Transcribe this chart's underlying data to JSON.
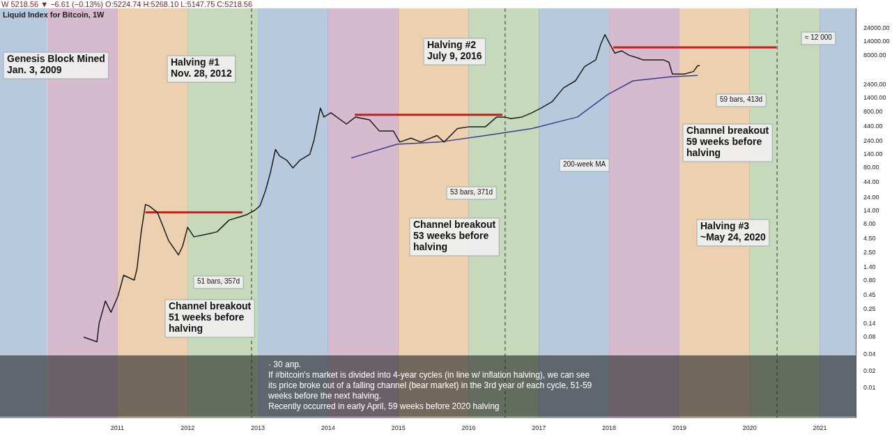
{
  "chart_data": {
    "type": "line",
    "title": "Liquid Index for Bitcoin, 1W",
    "subtitle": "W 5218.56 ▼ −6.61 (−0.13%) O:5224.74 H:5268.10 L:5147.75 C:5218.56",
    "series": [
      {
        "color": "#1a1a1a",
        "x": [
          2010.52,
          2010.71,
          2010.74,
          2010.83,
          2010.91,
          2011.01,
          2011.09,
          2011.24,
          2011.28,
          2011.34,
          2011.4,
          2011.45,
          2011.57,
          2011.63,
          2011.73,
          2011.87,
          2011.93,
          2012.0,
          2012.09,
          2012.29,
          2012.42,
          2012.59,
          2012.76,
          2012.85,
          2012.95,
          2013.03,
          2013.11,
          2013.18,
          2013.25,
          2013.31,
          2013.41,
          2013.5,
          2013.6,
          2013.74,
          2013.8,
          2013.89,
          2013.94,
          2014.04,
          2014.26,
          2014.39,
          2014.59,
          2014.73,
          2014.93,
          2015.02,
          2015.18,
          2015.32,
          2015.55,
          2015.65,
          2015.84,
          2016.01,
          2016.24,
          2016.4,
          2016.51,
          2016.6,
          2016.76,
          2016.9,
          2017.03,
          2017.19,
          2017.35,
          2017.52,
          2017.65,
          2017.81,
          2017.88,
          2017.94,
          2018.01,
          2018.08,
          2018.18,
          2018.28,
          2018.41,
          2018.48,
          2018.6,
          2018.77,
          2018.85,
          2018.9,
          2018.97,
          2019.07,
          2019.2,
          2019.26,
          2019.29
        ],
        "values": [
          0.08,
          0.066,
          0.14,
          0.35,
          0.22,
          0.43,
          1.0,
          0.82,
          1.3,
          5.9,
          18,
          17,
          13,
          8.5,
          4.1,
          2.3,
          3.3,
          7.1,
          4.8,
          5.4,
          5.9,
          9.5,
          11,
          12,
          14,
          17,
          32,
          67,
          170,
          130,
          110,
          80,
          110,
          140,
          250,
          920,
          640,
          760,
          480,
          640,
          570,
          360,
          360,
          230,
          270,
          230,
          300,
          230,
          400,
          430,
          430,
          640,
          640,
          600,
          640,
          760,
          920,
          1200,
          2100,
          2800,
          5000,
          6600,
          12500,
          18500,
          12500,
          8700,
          9500,
          8000,
          7100,
          6600,
          6600,
          6600,
          6000,
          3700,
          3700,
          3700,
          4100,
          5200,
          5200
        ]
      },
      {
        "color": "#3b3b8f",
        "x": [
          2014.33,
          2014.98,
          2015.58,
          2016.24,
          2016.9,
          2017.55,
          2017.98,
          2018.34,
          2018.87,
          2019.26
        ],
        "values": [
          120,
          210,
          230,
          300,
          400,
          640,
          1600,
          2800,
          3300,
          3500
        ]
      },
      {
        "color": "#d01818",
        "x": [
          2011.4,
          2012.78
        ],
        "values": [
          13,
          13
        ]
      },
      {
        "color": "#d01818",
        "x": [
          2014.38,
          2016.48
        ],
        "values": [
          700,
          700
        ]
      },
      {
        "color": "#d01818",
        "x": [
          2018.06,
          2020.38
        ],
        "values": [
          11000,
          11000
        ]
      }
    ],
    "xlim": [
      2009.33,
      2021.51
    ],
    "xticks": [
      2011,
      2012,
      2013,
      2014,
      2015,
      2016,
      2017,
      2018,
      2019,
      2020,
      2021
    ],
    "ylim": [
      0.003,
      54000
    ],
    "yticks": [
      {
        "value": 0.01,
        "label": "0.01"
      },
      {
        "value": 0.02,
        "label": "0.02"
      },
      {
        "value": 0.04,
        "label": "0.04"
      },
      {
        "value": 0.08,
        "label": "0.08"
      },
      {
        "value": 0.14,
        "label": "0.14"
      },
      {
        "value": 0.25,
        "label": "0.25"
      },
      {
        "value": 0.45,
        "label": "0.45"
      },
      {
        "value": 0.8,
        "label": "0.80"
      },
      {
        "value": 1.4,
        "label": "1.40"
      },
      {
        "value": 2.5,
        "label": "2.50"
      },
      {
        "value": 4.5,
        "label": "4.50"
      },
      {
        "value": 8,
        "label": "8.00"
      },
      {
        "value": 14,
        "label": "14.00"
      },
      {
        "value": 24,
        "label": "24.00"
      },
      {
        "value": 44,
        "label": "44.00"
      },
      {
        "value": 80,
        "label": "80.00"
      },
      {
        "value": 140,
        "label": "140.00"
      },
      {
        "value": 240,
        "label": "240.00"
      },
      {
        "value": 440,
        "label": "440.00"
      },
      {
        "value": 800,
        "label": "800.00"
      },
      {
        "value": 1400,
        "label": "1400.00"
      },
      {
        "value": 2400,
        "label": "2400.00"
      },
      {
        "value": 8000,
        "label": "8000.00"
      },
      {
        "value": 14000,
        "label": "14000.00"
      },
      {
        "value": 24000,
        "label": "24000.00"
      }
    ],
    "log": "y",
    "grid": "x",
    "legend": false,
    "marker": "none",
    "line_style": "solid",
    "bands": [
      {
        "axis": "x",
        "from": 2009.33,
        "to": 2010,
        "color": "#b7cadd"
      },
      {
        "axis": "x",
        "from": 2010,
        "to": 2011,
        "color": "#d6bacd"
      },
      {
        "axis": "x",
        "from": 2011,
        "to": 2012,
        "color": "#ecd0b0"
      },
      {
        "axis": "x",
        "from": 2012,
        "to": 2013,
        "color": "#c6d9ba"
      },
      {
        "axis": "x",
        "from": 2013,
        "to": 2014,
        "color": "#b7cadd"
      },
      {
        "axis": "x",
        "from": 2014,
        "to": 2015,
        "color": "#d6bacd"
      },
      {
        "axis": "x",
        "from": 2015,
        "to": 2016,
        "color": "#ecd0b0"
      },
      {
        "axis": "x",
        "from": 2016,
        "to": 2017,
        "color": "#c6d9ba"
      },
      {
        "axis": "x",
        "from": 2017,
        "to": 2018,
        "color": "#b7cadd"
      },
      {
        "axis": "x",
        "from": 2018,
        "to": 2019,
        "color": "#d6bacd"
      },
      {
        "axis": "x",
        "from": 2019,
        "to": 2020,
        "color": "#ecd0b0"
      },
      {
        "axis": "x",
        "from": 2020,
        "to": 2021,
        "color": "#c6d9ba"
      },
      {
        "axis": "x",
        "from": 2021,
        "to": 2021.51,
        "color": "#b7cadd"
      }
    ],
    "ref_lines": [
      {
        "axis": "x",
        "value": 2012.91,
        "color": "#333333",
        "line_style": "dashed"
      },
      {
        "axis": "x",
        "value": 2016.52,
        "color": "#333333",
        "line_style": "dashed"
      },
      {
        "axis": "x",
        "value": 2020.39,
        "color": "#333333",
        "line_style": "dashed"
      }
    ],
    "annotations": [
      "Genesis Block Mined\nJan. 3, 2009",
      "Halving #1\nNov. 28, 2012",
      "Halving #2\nJuly 9, 2016",
      "Halving #3\n~May 24, 2020",
      "Channel breakout\n51 weeks before\nhalving",
      "Channel breakout\n53 weeks before\nhalving",
      "Channel breakout\n59 weeks before\nhalving",
      "200-week MA",
      "51 bars, 357d",
      "53 bars, 371d",
      "59 bars, 413d",
      "≈ 12 000",
      "· 30 апр.",
      "If #bitcoin's market is divided into 4-year cycles (in line w/ inflation halving), we can see its price broke out of a falling channel (bear market) in the 3rd year of each cycle, 51-59 weeks before the next halving.",
      "Recently occurred in early April, 59 weeks before 2020 halving"
    ]
  }
}
